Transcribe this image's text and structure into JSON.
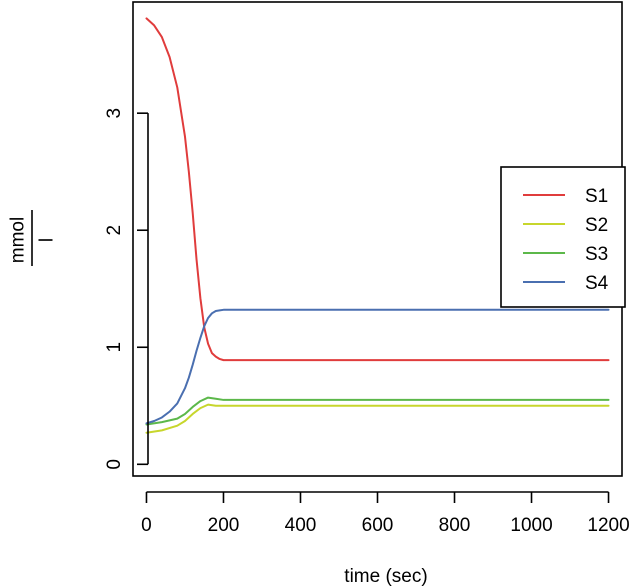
{
  "chart_data": {
    "type": "line",
    "title": "",
    "xlabel": "time (sec)",
    "ylabel_numerator": "mmol",
    "ylabel_denominator": "l",
    "xlim": [
      -35,
      1235
    ],
    "ylim": [
      -0.1,
      3.95
    ],
    "xticks": [
      0,
      200,
      400,
      600,
      800,
      1000,
      1200
    ],
    "xtick_labels": [
      "0",
      "200",
      "400",
      "600",
      "800",
      "1000",
      "1200"
    ],
    "yticks": [
      0,
      1,
      2,
      3
    ],
    "ytick_labels": [
      "0",
      "1",
      "2",
      "3"
    ],
    "grid": false,
    "legend_position": "right",
    "series": [
      {
        "name": "S1",
        "color": "#e03c3c",
        "x": [
          0,
          20,
          40,
          60,
          80,
          100,
          110,
          120,
          130,
          140,
          150,
          160,
          170,
          180,
          190,
          200,
          220,
          250,
          300,
          400,
          600,
          800,
          1000,
          1200
        ],
        "y": [
          3.81,
          3.75,
          3.65,
          3.48,
          3.22,
          2.8,
          2.5,
          2.15,
          1.75,
          1.42,
          1.17,
          1.03,
          0.95,
          0.92,
          0.9,
          0.89,
          0.89,
          0.89,
          0.89,
          0.89,
          0.89,
          0.89,
          0.89,
          0.89
        ]
      },
      {
        "name": "S2",
        "color": "#c7d62c",
        "x": [
          0,
          40,
          80,
          100,
          120,
          140,
          160,
          180,
          200,
          250,
          300,
          400,
          600,
          800,
          1000,
          1200
        ],
        "y": [
          0.27,
          0.29,
          0.33,
          0.37,
          0.43,
          0.48,
          0.51,
          0.5,
          0.5,
          0.5,
          0.5,
          0.5,
          0.5,
          0.5,
          0.5,
          0.5
        ]
      },
      {
        "name": "S3",
        "color": "#5cb84a",
        "x": [
          0,
          40,
          80,
          100,
          120,
          140,
          160,
          180,
          200,
          250,
          300,
          400,
          600,
          800,
          1000,
          1200
        ],
        "y": [
          0.34,
          0.36,
          0.39,
          0.43,
          0.49,
          0.54,
          0.57,
          0.56,
          0.55,
          0.55,
          0.55,
          0.55,
          0.55,
          0.55,
          0.55,
          0.55
        ]
      },
      {
        "name": "S4",
        "color": "#4a6fb0",
        "x": [
          0,
          20,
          40,
          60,
          80,
          100,
          110,
          120,
          130,
          140,
          150,
          160,
          170,
          180,
          190,
          200,
          220,
          250,
          300,
          400,
          600,
          800,
          1000,
          1200
        ],
        "y": [
          0.35,
          0.37,
          0.4,
          0.45,
          0.52,
          0.65,
          0.74,
          0.85,
          0.97,
          1.08,
          1.18,
          1.25,
          1.29,
          1.31,
          1.315,
          1.32,
          1.32,
          1.32,
          1.32,
          1.32,
          1.32,
          1.32,
          1.32,
          1.32
        ]
      }
    ]
  }
}
